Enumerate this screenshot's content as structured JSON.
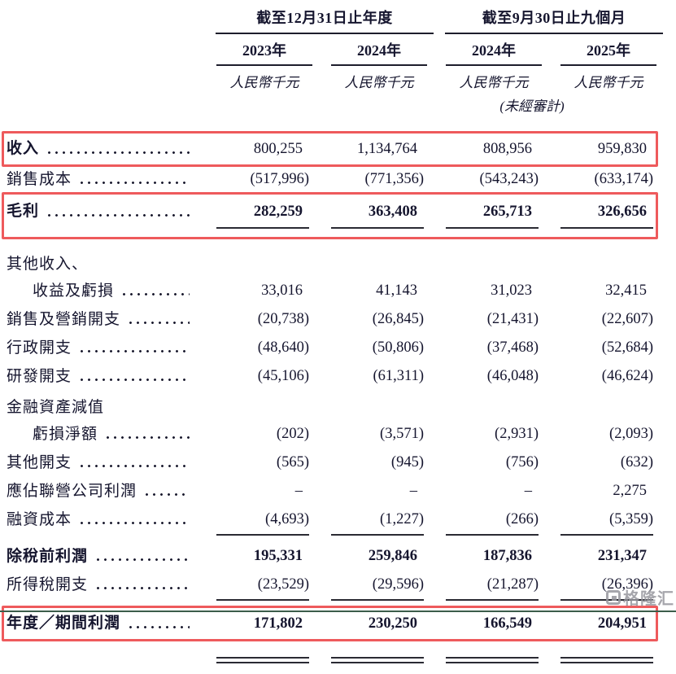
{
  "header": {
    "groups": [
      {
        "title": "截至12月31日止年度"
      },
      {
        "title": "截至9月30日止九個月"
      }
    ],
    "columns": [
      {
        "year": "2023年",
        "unit": "人民幣千元"
      },
      {
        "year": "2024年",
        "unit": "人民幣千元"
      },
      {
        "year": "2024年",
        "unit": "人民幣千元"
      },
      {
        "year": "2025年",
        "unit": "人民幣千元"
      }
    ],
    "unaudited_note": "(未經審計)"
  },
  "rows": [
    {
      "label": "收入",
      "leader": true,
      "label_bold": true,
      "value_bold": false,
      "boxed": true,
      "rule": "none",
      "indent": false,
      "values": [
        "800,255",
        "1,134,764",
        "808,956",
        "959,830"
      ]
    },
    {
      "label": "銷售成本",
      "leader": true,
      "label_bold": false,
      "value_bold": false,
      "boxed": false,
      "rule": "none",
      "indent": false,
      "values": [
        "(517,996)",
        "(771,356)",
        "(543,243)",
        "(633,174)"
      ]
    },
    {
      "label": "毛利",
      "leader": true,
      "label_bold": true,
      "value_bold": true,
      "boxed": true,
      "rule": "inside",
      "indent": false,
      "values": [
        "282,259",
        "363,408",
        "265,713",
        "326,656"
      ]
    },
    {
      "label": "其他收入、",
      "leader": false,
      "label_bold": false,
      "value_bold": false,
      "boxed": false,
      "rule": "none",
      "indent": false,
      "values": null
    },
    {
      "label": "收益及虧損",
      "leader": true,
      "label_bold": false,
      "value_bold": false,
      "boxed": false,
      "rule": "none",
      "indent": true,
      "values": [
        "33,016",
        "41,143",
        "31,023",
        "32,415"
      ]
    },
    {
      "label": "銷售及營銷開支",
      "leader": true,
      "label_bold": false,
      "value_bold": false,
      "boxed": false,
      "rule": "none",
      "indent": false,
      "values": [
        "(20,738)",
        "(26,845)",
        "(21,431)",
        "(22,607)"
      ]
    },
    {
      "label": "行政開支",
      "leader": true,
      "label_bold": false,
      "value_bold": false,
      "boxed": false,
      "rule": "none",
      "indent": false,
      "values": [
        "(48,640)",
        "(50,806)",
        "(37,468)",
        "(52,684)"
      ]
    },
    {
      "label": "研發開支",
      "leader": true,
      "label_bold": false,
      "value_bold": false,
      "boxed": false,
      "rule": "none",
      "indent": false,
      "values": [
        "(45,106)",
        "(61,311)",
        "(46,048)",
        "(46,624)"
      ]
    },
    {
      "label": "金融資產減值",
      "leader": false,
      "label_bold": false,
      "value_bold": false,
      "boxed": false,
      "rule": "none",
      "indent": false,
      "values": null
    },
    {
      "label": "虧損淨額",
      "leader": true,
      "label_bold": false,
      "value_bold": false,
      "boxed": false,
      "rule": "none",
      "indent": true,
      "values": [
        "(202)",
        "(3,571)",
        "(2,931)",
        "(2,093)"
      ]
    },
    {
      "label": "其他開支",
      "leader": true,
      "label_bold": false,
      "value_bold": false,
      "boxed": false,
      "rule": "none",
      "indent": false,
      "values": [
        "(565)",
        "(945)",
        "(756)",
        "(632)"
      ]
    },
    {
      "label": "應佔聯營公司利潤",
      "leader": true,
      "label_bold": false,
      "value_bold": false,
      "boxed": false,
      "rule": "none",
      "indent": false,
      "values": [
        "–",
        "–",
        "–",
        "2,275"
      ]
    },
    {
      "label": "融資成本",
      "leader": true,
      "label_bold": false,
      "value_bold": false,
      "boxed": false,
      "rule": "below",
      "indent": false,
      "values": [
        "(4,693)",
        "(1,227)",
        "(266)",
        "(5,359)"
      ]
    },
    {
      "label": "除稅前利潤",
      "leader": true,
      "label_bold": true,
      "value_bold": true,
      "boxed": false,
      "rule": "none",
      "indent": false,
      "values": [
        "195,331",
        "259,846",
        "187,836",
        "231,347"
      ]
    },
    {
      "label": "所得稅開支",
      "leader": true,
      "label_bold": false,
      "value_bold": false,
      "boxed": false,
      "rule": "below",
      "indent": false,
      "values": [
        "(23,529)",
        "(29,596)",
        "(21,287)",
        "(26,396)"
      ]
    },
    {
      "label": "年度／期間利潤",
      "leader": true,
      "label_bold": true,
      "value_bold": true,
      "boxed": true,
      "rule": "double",
      "indent": false,
      "values": [
        "171,802",
        "230,250",
        "166,549",
        "204,951"
      ]
    }
  ],
  "watermark": {
    "text": "格隆汇"
  },
  "colors": {
    "highlight_box": "#ee5a5c",
    "text": "#15152e",
    "rule": "#2a2a33",
    "bottom_rule": "#3c5d4b",
    "watermark": "#9a9aa0"
  }
}
